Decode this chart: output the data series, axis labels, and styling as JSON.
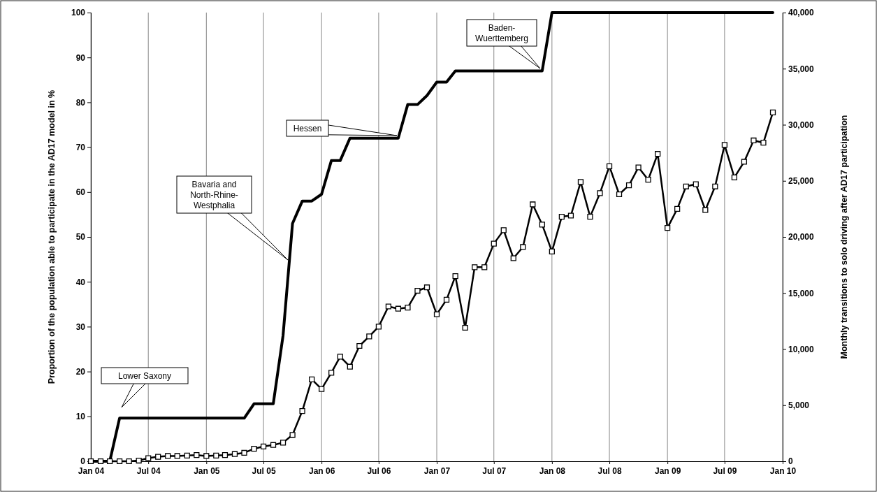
{
  "chart_data": {
    "type": "line",
    "ylabel": "Proportion of the population able to participate in the AD17 model in %",
    "y2label": "Monthly transitions to solo driving after AD17 participation",
    "x": [
      "2004-01",
      "2004-02",
      "2004-03",
      "2004-04",
      "2004-05",
      "2004-06",
      "2004-07",
      "2004-08",
      "2004-09",
      "2004-10",
      "2004-11",
      "2004-12",
      "2005-01",
      "2005-02",
      "2005-03",
      "2005-04",
      "2005-05",
      "2005-06",
      "2005-07",
      "2005-08",
      "2005-09",
      "2005-10",
      "2005-11",
      "2005-12",
      "2006-01",
      "2006-02",
      "2006-03",
      "2006-04",
      "2006-05",
      "2006-06",
      "2006-07",
      "2006-08",
      "2006-09",
      "2006-10",
      "2006-11",
      "2006-12",
      "2007-01",
      "2007-02",
      "2007-03",
      "2007-04",
      "2007-05",
      "2007-06",
      "2007-07",
      "2007-08",
      "2007-09",
      "2007-10",
      "2007-11",
      "2007-12",
      "2008-01",
      "2008-02",
      "2008-03",
      "2008-04",
      "2008-05",
      "2008-06",
      "2008-07",
      "2008-08",
      "2008-09",
      "2008-10",
      "2008-11",
      "2008-12",
      "2009-01",
      "2009-02",
      "2009-03",
      "2009-04",
      "2009-05",
      "2009-06",
      "2009-07",
      "2009-08",
      "2009-09",
      "2009-10",
      "2009-11",
      "2009-12"
    ],
    "series": [
      {
        "color": "#000000",
        "axis": "y",
        "marker": "none",
        "values": [
          0,
          0,
          0,
          9.6,
          9.6,
          9.6,
          9.6,
          9.6,
          9.6,
          9.6,
          9.6,
          9.6,
          9.6,
          9.6,
          9.6,
          9.6,
          9.6,
          12.8,
          12.8,
          12.8,
          28,
          53,
          58,
          58,
          59.5,
          67,
          67,
          72,
          72,
          72,
          72,
          72,
          72,
          79.5,
          79.5,
          81.5,
          84.5,
          84.5,
          87,
          87,
          87,
          87,
          87,
          87,
          87,
          87,
          87,
          87,
          100,
          100,
          100,
          100,
          100,
          100,
          100,
          100,
          100,
          100,
          100,
          100,
          100,
          100,
          100,
          100,
          100,
          100,
          100,
          100,
          100,
          100,
          100,
          100
        ]
      },
      {
        "color": "#000000",
        "axis": "y2",
        "marker": "square",
        "values": [
          0,
          0,
          0,
          0,
          0,
          60,
          280,
          400,
          470,
          470,
          510,
          550,
          470,
          510,
          550,
          640,
          750,
          1110,
          1320,
          1450,
          1660,
          2350,
          4480,
          7300,
          6440,
          7890,
          9320,
          8430,
          10280,
          11130,
          12000,
          13800,
          13600,
          13700,
          15200,
          15500,
          13100,
          14400,
          16500,
          11900,
          17300,
          17300,
          19400,
          20600,
          18100,
          19100,
          22900,
          21100,
          18700,
          21800,
          21900,
          24900,
          21800,
          23900,
          26300,
          23800,
          24600,
          26200,
          25100,
          27400,
          20800,
          22500,
          24500,
          24700,
          22400,
          24500,
          28200,
          25300,
          26700,
          28600,
          28400,
          31100
        ]
      }
    ],
    "xlim": [
      "2004-01",
      "2010-01"
    ],
    "xticks": [
      {
        "value": "2004-01",
        "label": "Jan 04"
      },
      {
        "value": "2004-07",
        "label": "Jul 04"
      },
      {
        "value": "2005-01",
        "label": "Jan 05"
      },
      {
        "value": "2005-07",
        "label": "Jul 05"
      },
      {
        "value": "2006-01",
        "label": "Jan 06"
      },
      {
        "value": "2006-07",
        "label": "Jul 06"
      },
      {
        "value": "2007-01",
        "label": "Jan 07"
      },
      {
        "value": "2007-07",
        "label": "Jul 07"
      },
      {
        "value": "2008-01",
        "label": "Jan 08"
      },
      {
        "value": "2008-07",
        "label": "Jul 08"
      },
      {
        "value": "2009-01",
        "label": "Jan 09"
      },
      {
        "value": "2009-07",
        "label": "Jul 09"
      },
      {
        "value": "2010-01",
        "label": "Jan 10"
      }
    ],
    "ylim": [
      0,
      100
    ],
    "yticks": [
      0,
      10,
      20,
      30,
      40,
      50,
      60,
      70,
      80,
      90,
      100
    ],
    "y2lim": [
      0,
      40000
    ],
    "y2ticks": [
      0,
      {
        "value": 5000,
        "label": "5,000"
      },
      {
        "value": 10000,
        "label": "10,000"
      },
      {
        "value": 15000,
        "label": "15,000"
      },
      {
        "value": 20000,
        "label": "20,000"
      },
      {
        "value": 25000,
        "label": "25,000"
      },
      {
        "value": 30000,
        "label": "30,000"
      },
      {
        "value": 35000,
        "label": "35,000"
      },
      {
        "value": 40000,
        "label": "40,000"
      }
    ],
    "grid": "x",
    "annotations": [
      "Lower Saxony",
      "Bavaria and North-Rhine-Westphalia",
      "Hessen",
      "Baden-Wuerttemberg"
    ]
  }
}
